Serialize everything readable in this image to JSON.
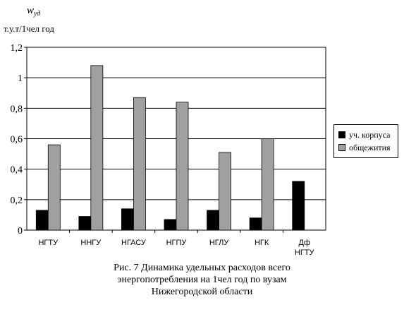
{
  "chart_data": {
    "type": "bar",
    "title": "",
    "ylabel_symbol": "w",
    "ylabel_subscript": "уд",
    "ylabel_units": "т.у.т/1чел год",
    "xlabel": "",
    "categories": [
      "НГТУ",
      "ННГУ",
      "НГАСУ",
      "НГПУ",
      "НГЛУ",
      "НГК",
      "Дф НГТУ"
    ],
    "series": [
      {
        "name": "уч. корпуса",
        "color": "#000000",
        "values": [
          0.13,
          0.09,
          0.14,
          0.07,
          0.13,
          0.08,
          0.32
        ]
      },
      {
        "name": "общежития",
        "color": "#a0a0a0",
        "values": [
          0.56,
          1.08,
          0.87,
          0.84,
          0.51,
          0.6,
          null
        ]
      }
    ],
    "ylim": [
      0,
      1.2
    ],
    "yticks": [
      "0",
      "0,2",
      "0,4",
      "0,6",
      "0,8",
      "1",
      "1,2"
    ],
    "grid": true,
    "legend_position": "right"
  },
  "caption": {
    "line1": "Рис. 7 Динамика удельных расходов всего",
    "line2": "энергопотребления на 1чел год по вузам",
    "line3": "Нижегородской области"
  }
}
